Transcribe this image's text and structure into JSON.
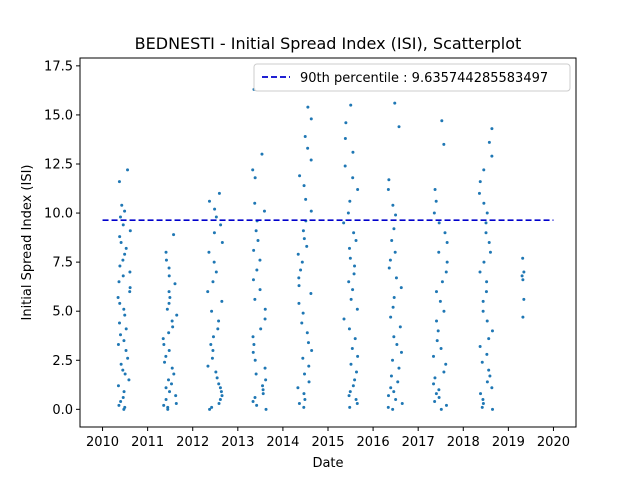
{
  "chart_data": {
    "type": "scatter",
    "title": "BEDNESTI - Initial Spread Index (ISI), Scatterplot",
    "xlabel": "Date",
    "ylabel": "Initial Spread Index (ISI)",
    "xlim": [
      2009.5,
      2020.5
    ],
    "ylim": [
      -0.9,
      17.9
    ],
    "xticks": [
      "2010",
      "2011",
      "2012",
      "2013",
      "2014",
      "2015",
      "2016",
      "2017",
      "2018",
      "2019",
      "2020"
    ],
    "yticks": [
      "0.0",
      "2.5",
      "5.0",
      "7.5",
      "10.0",
      "12.5",
      "15.0",
      "17.5"
    ],
    "grid": false,
    "legend_position": "top-right",
    "point_color": "#1f77b4",
    "reference_line": {
      "label": "90th percentile : 9.635744285583497",
      "value": 9.635744285583497,
      "x_range": [
        2010.0,
        2020.0
      ],
      "color": "#0000cc",
      "style": "dashed"
    },
    "season_clusters": [
      {
        "year": 2010,
        "x_range": [
          2010.33,
          2010.62
        ],
        "y_max": 12.2,
        "y_values": [
          0.0,
          0.1,
          0.2,
          0.4,
          0.6,
          0.9,
          1.2,
          1.5,
          1.8,
          2.0,
          2.3,
          2.6,
          3.0,
          3.3,
          3.5,
          3.8,
          4.1,
          4.4,
          4.8,
          5.1,
          5.4,
          5.7,
          6.0,
          6.2,
          6.5,
          6.8,
          7.0,
          7.3,
          7.6,
          7.9,
          8.2,
          8.5,
          8.8,
          9.1,
          9.4,
          9.8,
          10.1,
          10.4,
          11.6,
          12.2
        ]
      },
      {
        "year": 2011,
        "x_range": [
          2011.33,
          2011.66
        ],
        "y_max": 8.9,
        "y_values": [
          0.0,
          0.1,
          0.2,
          0.3,
          0.5,
          0.7,
          0.9,
          1.1,
          1.3,
          1.5,
          1.8,
          2.1,
          2.4,
          2.7,
          3.0,
          3.3,
          3.6,
          3.9,
          4.2,
          4.5,
          4.8,
          5.1,
          5.4,
          5.7,
          6.0,
          6.4,
          6.8,
          7.2,
          7.6,
          8.0,
          8.9
        ]
      },
      {
        "year": 2012,
        "x_range": [
          2012.33,
          2012.66
        ],
        "y_max": 11.0,
        "y_values": [
          0.0,
          0.1,
          0.3,
          0.5,
          0.7,
          0.9,
          1.1,
          1.3,
          1.6,
          1.9,
          2.2,
          2.6,
          3.0,
          3.3,
          3.7,
          4.1,
          4.5,
          5.0,
          5.5,
          6.0,
          6.5,
          7.0,
          7.5,
          8.0,
          8.5,
          9.0,
          9.4,
          9.8,
          10.2,
          10.6,
          11.0
        ]
      },
      {
        "year": 2013,
        "x_range": [
          2013.33,
          2013.66
        ],
        "y_max": 16.3,
        "y_values": [
          0.0,
          0.2,
          0.4,
          0.6,
          0.8,
          1.0,
          1.2,
          1.5,
          1.8,
          2.1,
          2.5,
          2.9,
          3.3,
          3.7,
          4.1,
          4.6,
          5.1,
          5.6,
          6.1,
          6.6,
          7.1,
          7.6,
          8.1,
          8.6,
          9.1,
          9.6,
          10.1,
          10.5,
          11.8,
          12.2,
          13.0,
          16.3
        ]
      },
      {
        "year": 2014,
        "x_range": [
          2014.33,
          2014.66
        ],
        "y_max": 15.4,
        "y_values": [
          0.1,
          0.3,
          0.5,
          0.8,
          1.1,
          1.4,
          1.8,
          2.2,
          2.6,
          3.0,
          3.4,
          3.9,
          4.4,
          4.9,
          5.4,
          5.9,
          6.3,
          6.7,
          7.1,
          7.5,
          7.9,
          8.3,
          8.7,
          9.1,
          9.6,
          10.1,
          10.7,
          11.4,
          11.9,
          12.7,
          13.3,
          13.9,
          14.8,
          15.4
        ]
      },
      {
        "year": 2015,
        "x_range": [
          2015.33,
          2015.66
        ],
        "y_max": 15.5,
        "y_values": [
          0.1,
          0.3,
          0.5,
          0.7,
          0.9,
          1.2,
          1.5,
          1.9,
          2.3,
          2.7,
          3.1,
          3.6,
          4.1,
          4.6,
          5.1,
          5.6,
          6.1,
          6.5,
          6.9,
          7.3,
          7.7,
          8.2,
          8.6,
          9.0,
          9.5,
          10.0,
          10.6,
          11.2,
          11.8,
          12.4,
          13.1,
          13.8,
          14.6,
          15.5
        ]
      },
      {
        "year": 2016,
        "x_range": [
          2016.33,
          2016.66
        ],
        "y_max": 15.6,
        "y_values": [
          0.0,
          0.1,
          0.3,
          0.5,
          0.7,
          0.9,
          1.1,
          1.4,
          1.7,
          2.1,
          2.5,
          2.9,
          3.3,
          3.7,
          4.2,
          4.7,
          5.2,
          5.7,
          6.2,
          6.7,
          7.2,
          7.6,
          8.0,
          8.6,
          9.2,
          9.9,
          10.4,
          11.2,
          11.7,
          14.4,
          15.6
        ]
      },
      {
        "year": 2017,
        "x_range": [
          2017.33,
          2017.66
        ],
        "y_max": 14.7,
        "y_values": [
          0.0,
          0.2,
          0.4,
          0.6,
          0.8,
          1.0,
          1.3,
          1.6,
          1.9,
          2.3,
          2.7,
          3.1,
          3.5,
          4.0,
          4.5,
          5.0,
          5.5,
          6.0,
          6.5,
          7.0,
          7.5,
          8.0,
          8.5,
          9.0,
          9.5,
          10.0,
          10.6,
          11.2,
          13.5,
          14.7
        ]
      },
      {
        "year": 2018,
        "x_range": [
          2018.33,
          2018.66
        ],
        "y_max": 14.3,
        "y_values": [
          0.0,
          0.1,
          0.3,
          0.5,
          0.8,
          1.1,
          1.4,
          1.7,
          2.0,
          2.4,
          2.8,
          3.2,
          3.6,
          4.0,
          4.5,
          5.0,
          5.5,
          6.0,
          6.5,
          7.0,
          7.5,
          8.0,
          8.5,
          9.0,
          9.5,
          10.0,
          10.5,
          11.0,
          11.6,
          12.2,
          12.9,
          13.6,
          14.3
        ]
      },
      {
        "year": 2019,
        "x_range": [
          2019.3,
          2019.35
        ],
        "y_max": 7.7,
        "y_values": [
          4.7,
          5.6,
          6.6,
          6.8,
          7.0,
          7.7
        ]
      }
    ]
  }
}
